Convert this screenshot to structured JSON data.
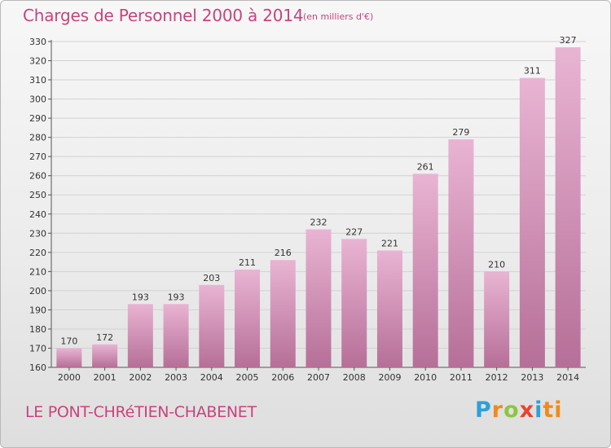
{
  "title": "Charges de Personnel 2000 à 2014",
  "unit_note": "(en milliers d'€)",
  "commune": "LE PONT-CHRéTIEN-CHABENET",
  "logo": [
    "P",
    "r",
    "o",
    "x",
    "i",
    "ti"
  ],
  "colors": {
    "bar_light": "#e9b4d3",
    "bar_dark": "#b66f98",
    "title": "#c8437c",
    "grid": "#d2d2d2"
  },
  "chart_data": {
    "type": "bar",
    "title": "Charges de Personnel 2000 à 2014",
    "subtitle": "(en milliers d'€)",
    "categories": [
      "2000",
      "2001",
      "2002",
      "2003",
      "2004",
      "2005",
      "2006",
      "2007",
      "2008",
      "2009",
      "2010",
      "2011",
      "2012",
      "2013",
      "2014"
    ],
    "values": [
      170,
      172,
      193,
      193,
      203,
      211,
      216,
      232,
      227,
      221,
      261,
      279,
      210,
      311,
      327
    ],
    "ylim": [
      160,
      330
    ],
    "yticks": [
      160,
      170,
      180,
      190,
      200,
      210,
      220,
      230,
      240,
      250,
      260,
      270,
      280,
      290,
      300,
      310,
      320,
      330
    ],
    "xlabel": "",
    "ylabel": "",
    "grid": true,
    "data_labels": true
  }
}
